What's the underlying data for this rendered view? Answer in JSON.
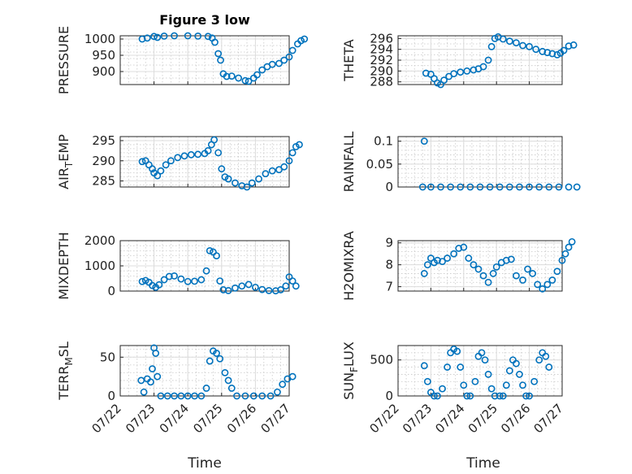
{
  "figure": {
    "title": "Figure 3 low",
    "xlabel": "Time"
  },
  "marker_color": "#0072BD",
  "chart_data": [
    {
      "type": "scatter",
      "ylabel": "PRESSURE",
      "ylim": [
        860,
        1010
      ],
      "yticks": [
        900,
        950,
        1000
      ],
      "minor_step": 20,
      "xticks": [],
      "series": [
        {
          "points": [
            [
              0.65,
              1000
            ],
            [
              0.8,
              1003
            ],
            [
              1.0,
              1008
            ],
            [
              1.1,
              1005
            ],
            [
              1.3,
              1009
            ],
            [
              1.6,
              1010
            ],
            [
              2.0,
              1010
            ],
            [
              2.3,
              1009
            ],
            [
              2.6,
              1008
            ],
            [
              2.72,
              1003
            ],
            [
              2.8,
              990
            ],
            [
              2.9,
              955
            ],
            [
              2.97,
              935
            ],
            [
              3.05,
              893
            ],
            [
              3.15,
              885
            ],
            [
              3.3,
              886
            ],
            [
              3.5,
              880
            ],
            [
              3.7,
              872
            ],
            [
              3.8,
              870
            ],
            [
              3.95,
              880
            ],
            [
              4.05,
              890
            ],
            [
              4.2,
              905
            ],
            [
              4.35,
              915
            ],
            [
              4.5,
              922
            ],
            [
              4.7,
              925
            ],
            [
              4.85,
              935
            ],
            [
              5.0,
              945
            ],
            [
              5.1,
              965
            ],
            [
              5.25,
              985
            ],
            [
              5.35,
              995
            ],
            [
              5.45,
              1000
            ]
          ]
        }
      ]
    },
    {
      "type": "scatter",
      "ylabel": "THETA",
      "ylim": [
        287.5,
        296.5
      ],
      "yticks": [
        288,
        290,
        292,
        294,
        296
      ],
      "minor_step": 1,
      "xticks": [],
      "series": [
        {
          "points": [
            [
              0.85,
              289.6
            ],
            [
              1.0,
              289.4
            ],
            [
              1.1,
              288.6
            ],
            [
              1.2,
              287.8
            ],
            [
              1.3,
              287.5
            ],
            [
              1.4,
              288.3
            ],
            [
              1.55,
              289
            ],
            [
              1.7,
              289.5
            ],
            [
              1.9,
              289.8
            ],
            [
              2.1,
              290
            ],
            [
              2.3,
              290.2
            ],
            [
              2.45,
              290.4
            ],
            [
              2.6,
              290.8
            ],
            [
              2.75,
              292
            ],
            [
              2.85,
              294.5
            ],
            [
              2.95,
              296
            ],
            [
              3.05,
              296.3
            ],
            [
              3.2,
              295.9
            ],
            [
              3.4,
              295.5
            ],
            [
              3.6,
              295.2
            ],
            [
              3.8,
              294.7
            ],
            [
              4.0,
              294.5
            ],
            [
              4.2,
              294
            ],
            [
              4.4,
              293.6
            ],
            [
              4.55,
              293.4
            ],
            [
              4.7,
              293.2
            ],
            [
              4.85,
              293.0
            ],
            [
              4.95,
              293.3
            ],
            [
              5.05,
              293.8
            ],
            [
              5.2,
              294.6
            ],
            [
              5.35,
              294.8
            ]
          ]
        }
      ]
    },
    {
      "type": "scatter",
      "ylabel": "AIR_TEMP",
      "ylim": [
        283.5,
        296
      ],
      "yticks": [
        285,
        290,
        295
      ],
      "minor_step": 1,
      "xticks": [],
      "series": [
        {
          "points": [
            [
              0.65,
              289.8
            ],
            [
              0.75,
              290
            ],
            [
              0.85,
              289
            ],
            [
              0.95,
              288
            ],
            [
              1.0,
              287
            ],
            [
              1.1,
              286.3
            ],
            [
              1.2,
              287.5
            ],
            [
              1.35,
              289
            ],
            [
              1.5,
              290
            ],
            [
              1.7,
              290.8
            ],
            [
              1.9,
              291.2
            ],
            [
              2.1,
              291.5
            ],
            [
              2.3,
              291.6
            ],
            [
              2.5,
              291.8
            ],
            [
              2.6,
              292.5
            ],
            [
              2.7,
              294
            ],
            [
              2.78,
              295.2
            ],
            [
              2.9,
              292
            ],
            [
              3.0,
              288
            ],
            [
              3.1,
              286
            ],
            [
              3.2,
              285.5
            ],
            [
              3.4,
              284.5
            ],
            [
              3.6,
              283.8
            ],
            [
              3.75,
              283.5
            ],
            [
              3.9,
              284.5
            ],
            [
              4.1,
              285.5
            ],
            [
              4.3,
              286.8
            ],
            [
              4.5,
              287.5
            ],
            [
              4.7,
              287.8
            ],
            [
              4.85,
              288.5
            ],
            [
              5.0,
              290
            ],
            [
              5.1,
              292
            ],
            [
              5.2,
              293.5
            ],
            [
              5.3,
              294
            ]
          ]
        }
      ]
    },
    {
      "type": "scatter",
      "ylabel": "RAINFALL",
      "ylim": [
        0,
        0.11
      ],
      "yticks": [
        0,
        0.05,
        0.1
      ],
      "minor_step": 0.01,
      "xticks": [],
      "series": [
        {
          "points": [
            [
              0.75,
              0
            ],
            [
              0.8,
              0.1
            ],
            [
              1.0,
              0
            ],
            [
              1.3,
              0
            ],
            [
              1.6,
              0
            ],
            [
              1.9,
              0
            ],
            [
              2.2,
              0
            ],
            [
              2.5,
              0
            ],
            [
              2.8,
              0
            ],
            [
              3.1,
              0
            ],
            [
              3.4,
              0
            ],
            [
              3.7,
              0
            ],
            [
              4.0,
              0
            ],
            [
              4.3,
              0
            ],
            [
              4.6,
              0
            ],
            [
              4.9,
              0
            ],
            [
              5.2,
              0
            ],
            [
              5.45,
              0
            ]
          ]
        }
      ]
    },
    {
      "type": "scatter",
      "ylabel": "MIXDEPTH",
      "ylim": [
        0,
        2000
      ],
      "yticks": [
        0,
        1000,
        2000
      ],
      "minor_step": 200,
      "xticks": [],
      "series": [
        {
          "points": [
            [
              0.65,
              380
            ],
            [
              0.75,
              420
            ],
            [
              0.85,
              350
            ],
            [
              0.95,
              220
            ],
            [
              1.05,
              150
            ],
            [
              1.15,
              250
            ],
            [
              1.3,
              450
            ],
            [
              1.45,
              580
            ],
            [
              1.6,
              600
            ],
            [
              1.8,
              480
            ],
            [
              2.0,
              380
            ],
            [
              2.2,
              390
            ],
            [
              2.4,
              450
            ],
            [
              2.55,
              800
            ],
            [
              2.65,
              1600
            ],
            [
              2.75,
              1550
            ],
            [
              2.85,
              1400
            ],
            [
              2.95,
              400
            ],
            [
              3.05,
              50
            ],
            [
              3.2,
              20
            ],
            [
              3.4,
              120
            ],
            [
              3.6,
              200
            ],
            [
              3.8,
              260
            ],
            [
              4.0,
              150
            ],
            [
              4.2,
              60
            ],
            [
              4.4,
              20
            ],
            [
              4.6,
              10
            ],
            [
              4.75,
              50
            ],
            [
              4.9,
              200
            ],
            [
              5.0,
              560
            ],
            [
              5.1,
              400
            ],
            [
              5.2,
              200
            ]
          ]
        }
      ]
    },
    {
      "type": "scatter",
      "ylabel": "H2OMIXRA",
      "ylim": [
        6.8,
        9.1
      ],
      "yticks": [
        7,
        8,
        9
      ],
      "minor_step": 0.2,
      "xticks": [],
      "series": [
        {
          "points": [
            [
              0.8,
              7.6
            ],
            [
              0.9,
              8.0
            ],
            [
              1.0,
              8.3
            ],
            [
              1.1,
              8.1
            ],
            [
              1.2,
              8.2
            ],
            [
              1.35,
              8.15
            ],
            [
              1.5,
              8.3
            ],
            [
              1.7,
              8.5
            ],
            [
              1.85,
              8.75
            ],
            [
              2.0,
              8.8
            ],
            [
              2.15,
              8.3
            ],
            [
              2.3,
              8.0
            ],
            [
              2.45,
              7.8
            ],
            [
              2.6,
              7.5
            ],
            [
              2.75,
              7.2
            ],
            [
              2.9,
              7.6
            ],
            [
              3.0,
              7.9
            ],
            [
              3.15,
              8.1
            ],
            [
              3.3,
              8.2
            ],
            [
              3.45,
              8.25
            ],
            [
              3.6,
              7.5
            ],
            [
              3.8,
              7.3
            ],
            [
              3.95,
              7.8
            ],
            [
              4.1,
              7.6
            ],
            [
              4.25,
              7.1
            ],
            [
              4.4,
              6.9
            ],
            [
              4.55,
              7.1
            ],
            [
              4.7,
              7.3
            ],
            [
              4.85,
              7.7
            ],
            [
              5.0,
              8.2
            ],
            [
              5.1,
              8.5
            ],
            [
              5.2,
              8.8
            ],
            [
              5.3,
              9.05
            ]
          ]
        }
      ]
    },
    {
      "type": "scatter",
      "ylabel": "TERR_MSL",
      "ylim": [
        0,
        65
      ],
      "yticks": [
        0,
        50
      ],
      "minor_step": 10,
      "xticks": [
        0,
        1,
        2,
        3,
        4,
        5
      ],
      "xticklabels": [
        "07/22",
        "07/23",
        "07/24",
        "07/25",
        "07/26",
        "07/27"
      ],
      "series": [
        {
          "points": [
            [
              0.62,
              20
            ],
            [
              0.7,
              5
            ],
            [
              0.8,
              22
            ],
            [
              0.9,
              18
            ],
            [
              0.95,
              35
            ],
            [
              1.0,
              62
            ],
            [
              1.05,
              55
            ],
            [
              1.1,
              25
            ],
            [
              1.2,
              0
            ],
            [
              1.4,
              0
            ],
            [
              1.6,
              0
            ],
            [
              1.8,
              0
            ],
            [
              2.0,
              0
            ],
            [
              2.2,
              0
            ],
            [
              2.4,
              0
            ],
            [
              2.55,
              10
            ],
            [
              2.65,
              45
            ],
            [
              2.75,
              58
            ],
            [
              2.85,
              55
            ],
            [
              2.95,
              48
            ],
            [
              3.1,
              30
            ],
            [
              3.2,
              20
            ],
            [
              3.3,
              10
            ],
            [
              3.45,
              0
            ],
            [
              3.7,
              0
            ],
            [
              3.95,
              0
            ],
            [
              4.2,
              0
            ],
            [
              4.45,
              0
            ],
            [
              4.65,
              5
            ],
            [
              4.8,
              15
            ],
            [
              4.95,
              22
            ],
            [
              5.1,
              25
            ]
          ]
        }
      ]
    },
    {
      "type": "scatter",
      "ylabel": "SUN_FLUX",
      "ylim": [
        0,
        700
      ],
      "yticks": [
        0,
        500
      ],
      "minor_step": 100,
      "xticks": [
        0,
        1,
        2,
        3,
        4,
        5
      ],
      "xticklabels": [
        "07/22",
        "07/23",
        "07/24",
        "07/25",
        "07/26",
        "07/27"
      ],
      "series": [
        {
          "points": [
            [
              0.8,
              420
            ],
            [
              0.9,
              200
            ],
            [
              1.0,
              50
            ],
            [
              1.1,
              0
            ],
            [
              1.2,
              0
            ],
            [
              1.35,
              100
            ],
            [
              1.5,
              400
            ],
            [
              1.6,
              600
            ],
            [
              1.7,
              650
            ],
            [
              1.8,
              620
            ],
            [
              1.9,
              400
            ],
            [
              2.0,
              150
            ],
            [
              2.1,
              0
            ],
            [
              2.2,
              0
            ],
            [
              2.35,
              200
            ],
            [
              2.45,
              550
            ],
            [
              2.55,
              600
            ],
            [
              2.65,
              500
            ],
            [
              2.75,
              300
            ],
            [
              2.85,
              100
            ],
            [
              2.95,
              0
            ],
            [
              3.1,
              0
            ],
            [
              3.2,
              0
            ],
            [
              3.3,
              150
            ],
            [
              3.4,
              350
            ],
            [
              3.5,
              500
            ],
            [
              3.6,
              450
            ],
            [
              3.7,
              300
            ],
            [
              3.8,
              150
            ],
            [
              3.9,
              0
            ],
            [
              4.0,
              0
            ],
            [
              4.15,
              200
            ],
            [
              4.3,
              500
            ],
            [
              4.4,
              600
            ],
            [
              4.5,
              550
            ],
            [
              4.6,
              400
            ]
          ]
        }
      ]
    }
  ]
}
